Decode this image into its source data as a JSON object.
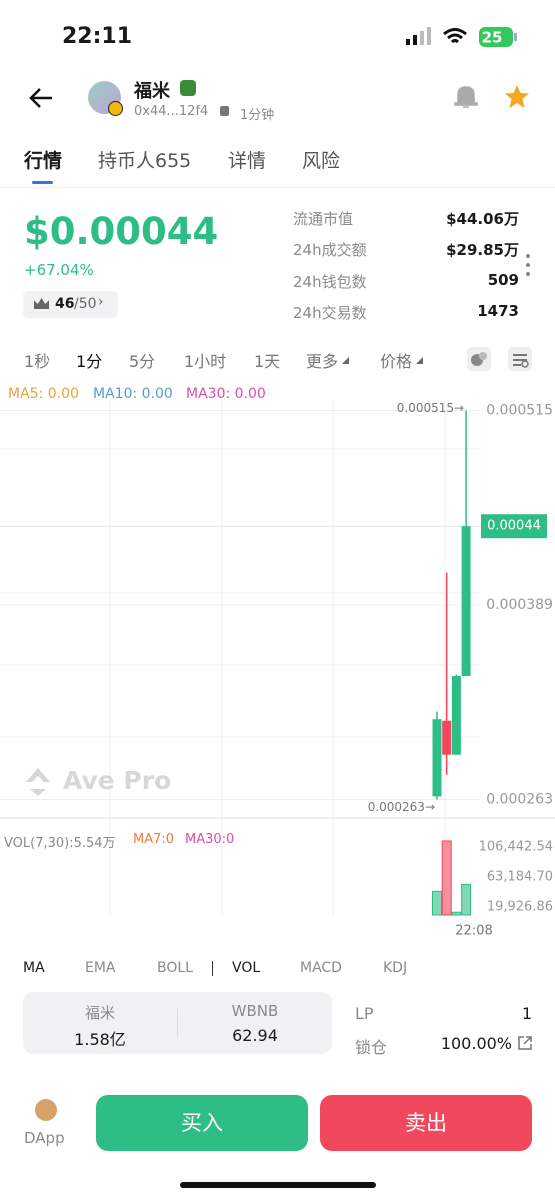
{
  "status_bar": {
    "time": "22:11",
    "battery": "25"
  },
  "token": {
    "name": "福米",
    "address": "0x44...12f4",
    "age": "1分钟"
  },
  "tabs": [
    "行情",
    "持币人655",
    "详情",
    "风险"
  ],
  "price": {
    "value": "$0.00044",
    "change": "+67.04%",
    "rank": "46",
    "rank_total": "/50"
  },
  "stats": [
    {
      "label": "流通市值",
      "value": "$44.06万"
    },
    {
      "label": "24h成交额",
      "value": "$29.85万"
    },
    {
      "label": "24h钱包数",
      "value": "509"
    },
    {
      "label": "24h交易数",
      "value": "1473"
    }
  ],
  "intervals": [
    "1秒",
    "1分",
    "5分",
    "1小时",
    "1天",
    "更多",
    "价格"
  ],
  "ma_legend": [
    "MA5: 0.00",
    "MA10: 0.00",
    "MA30: 0.00"
  ],
  "kline": {
    "ylim": [
      0.000251,
      0.000525
    ],
    "yticks": [
      {
        "value": 0.000515,
        "label": "0.000515"
      },
      {
        "value": 0.000389,
        "label": "0.000389"
      },
      {
        "value": 0.000263,
        "label": "0.000263"
      }
    ],
    "current": {
      "value": 0.00044,
      "label": "0.00044"
    },
    "high_label": "0.000515→",
    "low_label": "0.000263→",
    "watermark": "Ave Pro",
    "candles": [
      {
        "open": 0.000265,
        "high": 0.00032,
        "low": 0.000263,
        "close": 0.000315
      },
      {
        "open": 0.000314,
        "high": 0.00041,
        "low": 0.000279,
        "close": 0.000292
      },
      {
        "open": 0.000292,
        "high": 0.000344,
        "low": 0.000292,
        "close": 0.000343
      },
      {
        "open": 0.000343,
        "high": 0.000515,
        "low": 0.000343,
        "close": 0.00044
      }
    ]
  },
  "volume": {
    "legend": "VOL(7,30):5.54万",
    "ma7": "MA7:0",
    "ma30": "MA30:0",
    "ylim": [
      0,
      115000
    ],
    "yticks": [
      {
        "value": 106442.54,
        "label": "106,442.54"
      },
      {
        "value": 63184.7,
        "label": "63,184.70"
      },
      {
        "value": 19926.86,
        "label": "19,926.86"
      }
    ],
    "values": [
      34000,
      106442,
      4000,
      44000
    ],
    "time_label": "22:08"
  },
  "indicators": [
    "MA",
    "EMA",
    "BOLL",
    "VOL",
    "MACD",
    "KDJ"
  ],
  "pool": {
    "token_name": "福米",
    "token_amount": "1.58亿",
    "base_name": "WBNB",
    "base_amount": "62.94",
    "lp_label": "LP",
    "lp_value": "1",
    "lock_label": "锁仓",
    "lock_value": "100.00%"
  },
  "bottom": {
    "dapp": "DApp",
    "buy": "买入",
    "sell": "卖出"
  }
}
